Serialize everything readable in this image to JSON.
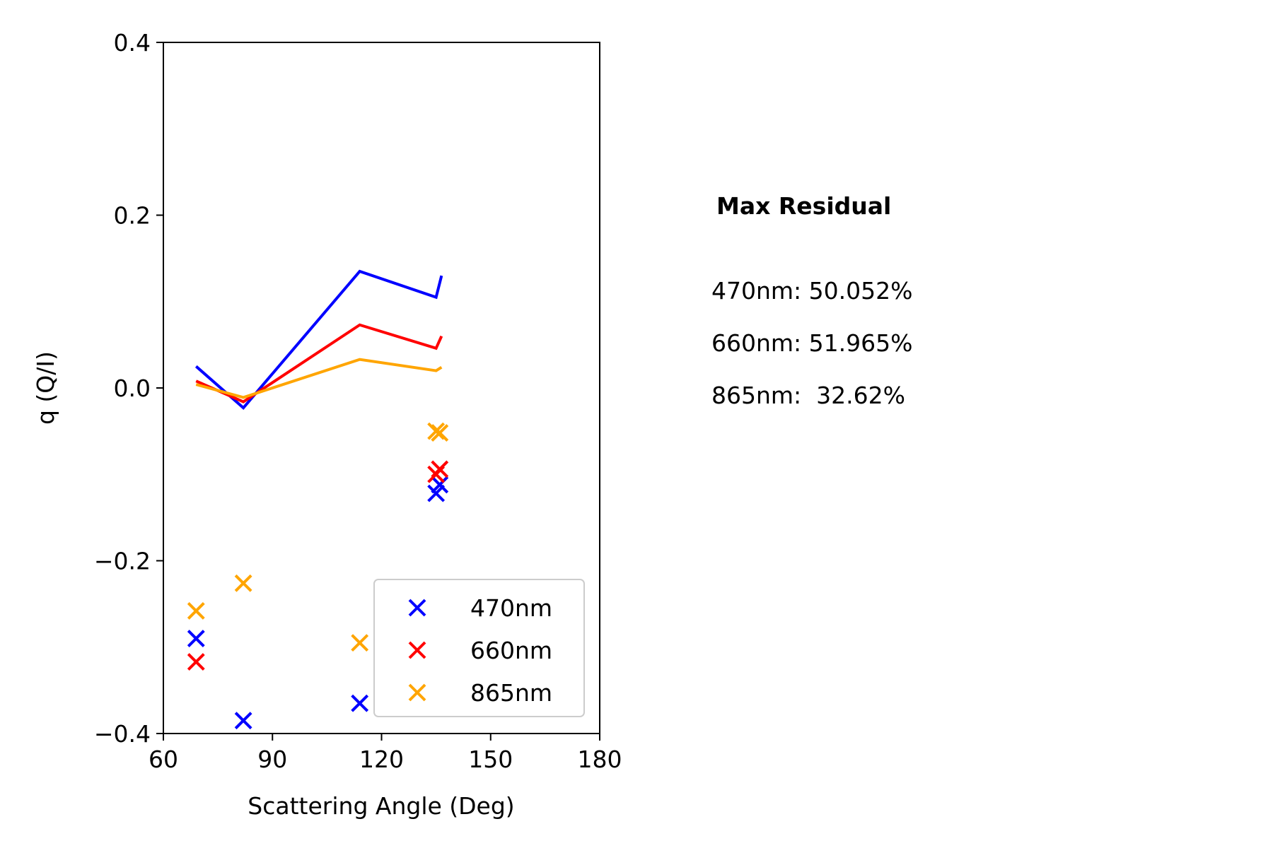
{
  "chart_data": {
    "type": "scatter",
    "xlabel": "Scattering Angle (Deg)",
    "ylabel": "q (Q/I)",
    "xlim": [
      60,
      180
    ],
    "ylim": [
      -0.4,
      0.4
    ],
    "xticks": [
      60,
      90,
      120,
      150,
      180
    ],
    "xtick_labels": [
      "60",
      "90",
      "120",
      "150",
      "180"
    ],
    "yticks": [
      -0.4,
      -0.2,
      0.0,
      0.2,
      0.4
    ],
    "ytick_labels": [
      "−0.4",
      "−0.2",
      "0.0",
      "0.2",
      "0.4"
    ],
    "grid": false,
    "legend_position": "bottom-right",
    "series": [
      {
        "name": "470nm",
        "color": "#0000ff",
        "line": {
          "x": [
            69,
            82,
            114,
            135,
            136.5
          ],
          "y": [
            0.025,
            -0.023,
            0.135,
            0.105,
            0.13
          ]
        },
        "points": {
          "x": [
            69,
            82,
            114,
            135,
            136
          ],
          "y": [
            -0.29,
            -0.385,
            -0.365,
            -0.122,
            -0.112
          ]
        }
      },
      {
        "name": "660nm",
        "color": "#ff0000",
        "line": {
          "x": [
            69,
            82,
            114,
            135,
            136.5
          ],
          "y": [
            0.008,
            -0.016,
            0.073,
            0.046,
            0.06
          ]
        },
        "points": {
          "x": [
            69,
            135,
            136
          ],
          "y": [
            -0.317,
            -0.1,
            -0.094
          ]
        }
      },
      {
        "name": "865nm",
        "color": "#ffa500",
        "line": {
          "x": [
            69,
            82,
            114,
            135,
            136.5
          ],
          "y": [
            0.004,
            -0.011,
            0.033,
            0.02,
            0.024
          ]
        },
        "points": {
          "x": [
            69,
            82,
            114,
            135,
            136
          ],
          "y": [
            -0.258,
            -0.226,
            -0.295,
            -0.05,
            -0.052
          ]
        }
      }
    ]
  },
  "residuals": {
    "title": "Max Residual",
    "lines": [
      "470nm: 50.052%",
      "660nm: 51.965%",
      "865nm:  32.62%"
    ]
  }
}
